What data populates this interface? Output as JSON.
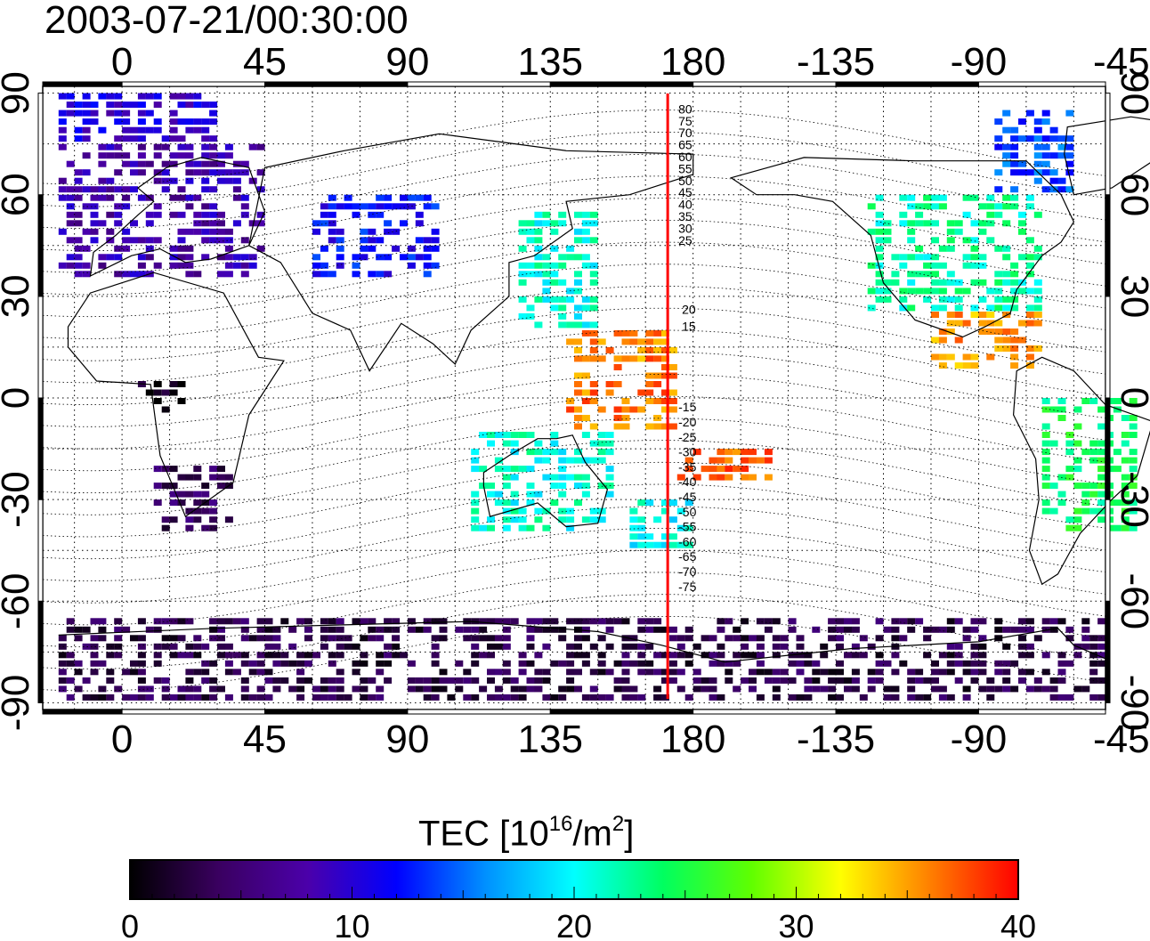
{
  "title": "2003-07-21/00:30:00",
  "map": {
    "projection": "equirectangular",
    "lon_ticks": [
      "0",
      "45",
      "90",
      "135",
      "180",
      "-135",
      "-90",
      "-45"
    ],
    "lat_ticks": [
      "90",
      "60",
      "30",
      "0",
      "-30",
      "-60",
      "-90"
    ],
    "lon_range": [
      -25,
      310
    ],
    "lat_range": [
      -92,
      92
    ],
    "grid": "dotted every 15 degrees",
    "terminator_longitude": 172,
    "terminator_color": "#ff0000",
    "contour_labels_north": [
      "80",
      "75",
      "70",
      "65",
      "60",
      "55",
      "50",
      "45",
      "40",
      "35",
      "30",
      "25",
      "20",
      "15"
    ],
    "contour_labels_south": [
      "-15",
      "-20",
      "-25",
      "-30",
      "-35",
      "-40",
      "-45",
      "-50",
      "-55",
      "-60",
      "-65",
      "-70",
      "-75"
    ]
  },
  "colorbar": {
    "label_main": "TEC  [10",
    "label_exp1": "16",
    "label_mid": "/m",
    "label_exp2": "2",
    "label_end": "]",
    "min": 0,
    "max": 40,
    "tick_labels": [
      "0",
      "10",
      "20",
      "30",
      "40"
    ],
    "colormap": [
      "#000000",
      "#3a0060",
      "#4b00aa",
      "#0000ff",
      "#0090ff",
      "#00ffff",
      "#00ff60",
      "#60ff00",
      "#ffff00",
      "#ff8000",
      "#ff0000"
    ]
  },
  "chart_data": {
    "type": "heatmap",
    "title": "2003-07-21/00:30:00",
    "quantity": "TEC  [10^16/m^2]",
    "value_range": [
      0,
      40
    ],
    "regions": [
      {
        "lon": [
          -20,
          45
        ],
        "lat": [
          35,
          75
        ],
        "tec": 8
      },
      {
        "lon": [
          -20,
          30
        ],
        "lat": [
          75,
          88
        ],
        "tec": 10
      },
      {
        "lon": [
          60,
          100
        ],
        "lat": [
          35,
          60
        ],
        "tec": 12
      },
      {
        "lon": [
          125,
          150
        ],
        "lat": [
          20,
          55
        ],
        "tec": 21
      },
      {
        "lon": [
          140,
          175
        ],
        "lat": [
          -10,
          20
        ],
        "tec": 36
      },
      {
        "lon": [
          110,
          155
        ],
        "lat": [
          -40,
          -10
        ],
        "tec": 21
      },
      {
        "lon": [
          160,
          180
        ],
        "lat": [
          -45,
          -30
        ],
        "tec": 20
      },
      {
        "lon": [
          175,
          205
        ],
        "lat": [
          -25,
          -15
        ],
        "tec": 37
      },
      {
        "lon": [
          235,
          290
        ],
        "lat": [
          25,
          60
        ],
        "tec": 22
      },
      {
        "lon": [
          255,
          290
        ],
        "lat": [
          8,
          25
        ],
        "tec": 35
      },
      {
        "lon": [
          290,
          320
        ],
        "lat": [
          -40,
          0
        ],
        "tec": 24
      },
      {
        "lon": [
          275,
          300
        ],
        "lat": [
          60,
          85
        ],
        "tec": 14
      },
      {
        "lon": [
          10,
          35
        ],
        "lat": [
          -40,
          -20
        ],
        "tec": 4
      },
      {
        "lon": [
          5,
          20
        ],
        "lat": [
          -5,
          5
        ],
        "tec": 1
      },
      {
        "lon": [
          -20,
          310
        ],
        "lat": [
          -90,
          -65
        ],
        "tec": 3
      }
    ]
  }
}
